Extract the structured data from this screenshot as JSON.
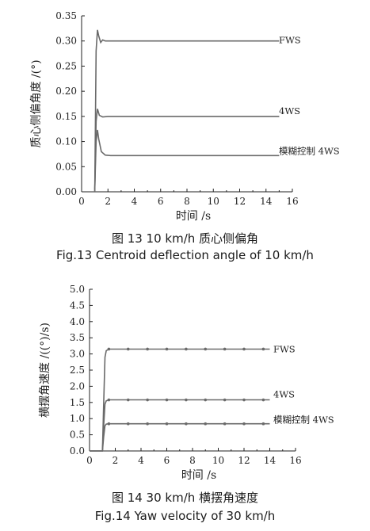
{
  "chart_data": [
    {
      "type": "line",
      "caption_cn": "图 13  10 km/h 质心侧偏角",
      "caption_en": "Fig.13  Centroid deflection angle of 10 km/h",
      "xlabel": "时间 /s",
      "ylabel": "质心侧偏角度 /(°)",
      "xlim": [
        0,
        16
      ],
      "ylim": [
        0,
        0.35
      ],
      "xticks": [
        0,
        2,
        4,
        6,
        8,
        10,
        12,
        14,
        16
      ],
      "yticks": [
        "0.00",
        "0.05",
        "0.10",
        "0.15",
        "0.20",
        "0.25",
        "0.30",
        "0.35"
      ],
      "series": [
        {
          "name": "FWS",
          "x": [
            1.0,
            1.1,
            1.2,
            1.3,
            1.45,
            1.6,
            1.8,
            2.2,
            3,
            15
          ],
          "y": [
            0,
            0.28,
            0.322,
            0.31,
            0.297,
            0.302,
            0.3,
            0.3,
            0.3,
            0.3
          ]
        },
        {
          "name": "4WS",
          "x": [
            1.0,
            1.1,
            1.2,
            1.35,
            1.6,
            2,
            3,
            15
          ],
          "y": [
            0,
            0.14,
            0.165,
            0.152,
            0.149,
            0.15,
            0.15,
            0.15
          ]
        },
        {
          "name": "模糊控制 4WS",
          "x": [
            1.0,
            1.1,
            1.2,
            1.3,
            1.5,
            1.8,
            2.2,
            3,
            15
          ],
          "y": [
            0.005,
            0.1,
            0.123,
            0.105,
            0.08,
            0.073,
            0.072,
            0.072,
            0.072
          ]
        }
      ]
    },
    {
      "type": "line",
      "caption_cn": "图 14  30 km/h 横摆角速度",
      "caption_en": "Fig.14  Yaw velocity of 30 km/h",
      "xlabel": "时间 /s",
      "ylabel": "横摆角速度 /((°)/s)",
      "xlim": [
        0,
        16
      ],
      "ylim": [
        0,
        5.0
      ],
      "xticks": [
        0,
        2,
        4,
        6,
        8,
        10,
        12,
        14,
        16
      ],
      "yticks": [
        "0.0",
        "0.5",
        "1.0",
        "1.5",
        "2.0",
        "2.5",
        "3.0",
        "3.5",
        "4.0",
        "4.5",
        "5.0"
      ],
      "series": [
        {
          "name": "FWS",
          "x": [
            0,
            1.0,
            1.1,
            1.2,
            1.3,
            1.5,
            2,
            14
          ],
          "y": [
            0,
            0,
            1.5,
            2.9,
            3.1,
            3.15,
            3.15,
            3.15
          ]
        },
        {
          "name": "4WS",
          "x": [
            0,
            1.0,
            1.1,
            1.2,
            1.3,
            1.5,
            2,
            14
          ],
          "y": [
            0,
            0,
            0.8,
            1.45,
            1.55,
            1.58,
            1.58,
            1.58
          ]
        },
        {
          "name": "模糊控制 4WS",
          "x": [
            0,
            1.0,
            1.1,
            1.2,
            1.3,
            1.5,
            2,
            14
          ],
          "y": [
            0,
            0,
            0.45,
            0.78,
            0.83,
            0.84,
            0.84,
            0.84
          ]
        }
      ],
      "markers_x": [
        1.5,
        3,
        4.5,
        6,
        7.5,
        9,
        10.5,
        12,
        13.5
      ]
    }
  ]
}
